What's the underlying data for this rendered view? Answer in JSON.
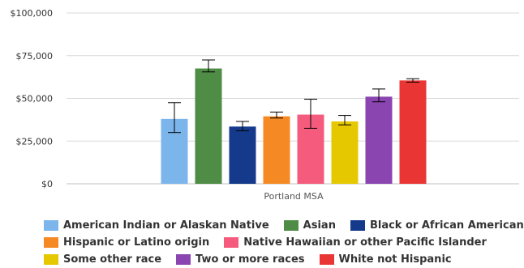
{
  "chart_data": {
    "type": "bar",
    "categories": [
      "Portland MSA"
    ],
    "y_ticks": [
      "$0",
      "$25,000",
      "$50,000",
      "$75,000",
      "$100,000"
    ],
    "ylim": [
      0,
      100000
    ],
    "grid": true,
    "legend_position": "bottom",
    "series": [
      {
        "name": "American Indian or Alaskan Native",
        "color": "#7cb5ec",
        "values": [
          38000
        ],
        "error": [
          [
            30000,
            47500
          ]
        ]
      },
      {
        "name": "Asian",
        "color": "#4f8d46",
        "values": [
          67500
        ],
        "error": [
          [
            65500,
            72500
          ]
        ]
      },
      {
        "name": "Black or African American",
        "color": "#153a8c",
        "values": [
          33500
        ],
        "error": [
          [
            31000,
            36500
          ]
        ]
      },
      {
        "name": "Hispanic or Latino origin",
        "color": "#f58a24",
        "values": [
          39500
        ],
        "error": [
          [
            38500,
            42000
          ]
        ]
      },
      {
        "name": "Native Hawaiian or other Pacific Islander",
        "color": "#f45b7d",
        "values": [
          40500
        ],
        "error": [
          [
            32500,
            49500
          ]
        ]
      },
      {
        "name": "Some other race",
        "color": "#e6c800",
        "values": [
          36500
        ],
        "error": [
          [
            34500,
            40000
          ]
        ]
      },
      {
        "name": "Two or more races",
        "color": "#8a45b0",
        "values": [
          51000
        ],
        "error": [
          [
            48000,
            55500
          ]
        ]
      },
      {
        "name": "White not Hispanic",
        "color": "#ea3535",
        "values": [
          60500
        ],
        "error": [
          [
            59500,
            61500
          ]
        ]
      }
    ]
  },
  "legend_rows": [
    [
      0,
      1,
      2
    ],
    [
      3,
      4
    ],
    [
      5,
      6,
      7
    ]
  ]
}
